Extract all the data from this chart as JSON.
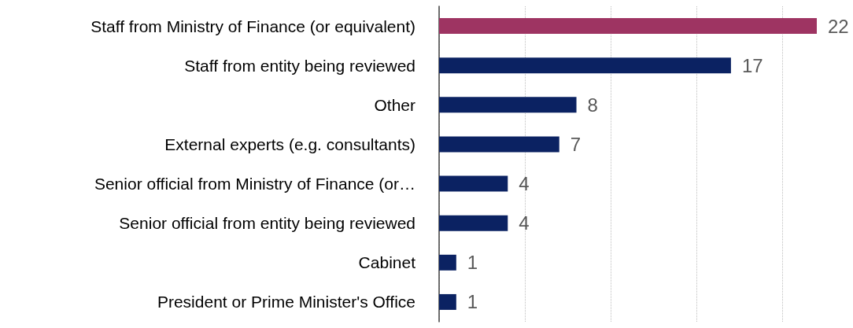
{
  "chart_data": {
    "type": "bar",
    "orientation": "horizontal",
    "categories": [
      "Staff from Ministry of Finance (or equivalent)",
      "Staff from entity being reviewed",
      "Other",
      "External experts (e.g. consultants)",
      "Senior official from Ministry of Finance (or…",
      "Senior official from entity being reviewed",
      "Cabinet",
      "President or Prime Minister's Office"
    ],
    "values": [
      22,
      17,
      8,
      7,
      4,
      4,
      1,
      1
    ],
    "colors": [
      "#9e3462",
      "#0b2262",
      "#0b2262",
      "#0b2262",
      "#0b2262",
      "#0b2262",
      "#0b2262",
      "#0b2262"
    ],
    "xlim": [
      0,
      22
    ],
    "xticks": [
      {
        "value": 0,
        "label": null
      },
      {
        "value": 5,
        "label": null
      },
      {
        "value": 10,
        "label": null
      },
      {
        "value": 15,
        "label": null
      },
      {
        "value": 20,
        "label": null
      }
    ],
    "grid": "x",
    "data_labels": true,
    "tick_labels": "y"
  }
}
